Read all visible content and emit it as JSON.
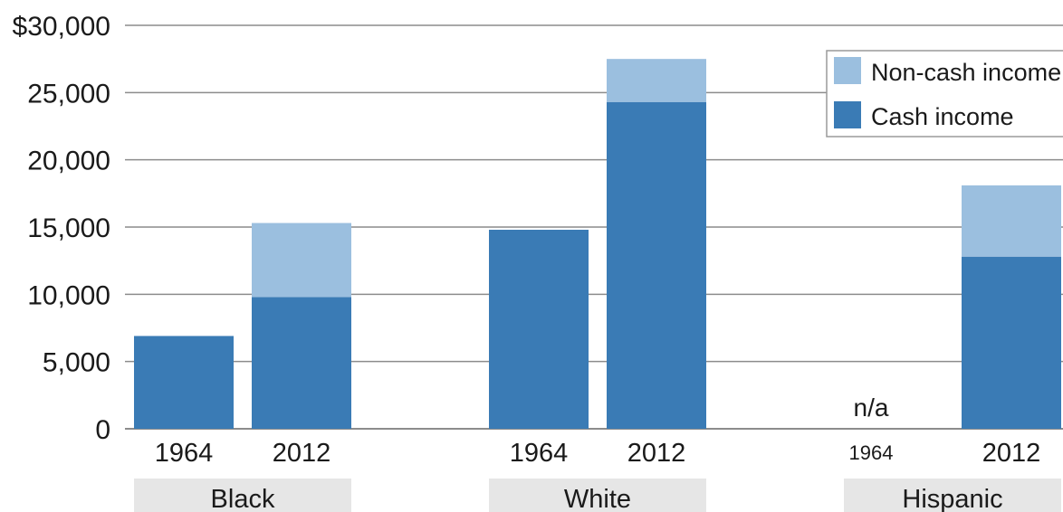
{
  "chart_data": {
    "type": "bar",
    "stacked": true,
    "ylim": [
      0,
      30000
    ],
    "y_ticks": [
      {
        "value": 0,
        "label": "0"
      },
      {
        "value": 5000,
        "label": "5,000"
      },
      {
        "value": 10000,
        "label": "10,000"
      },
      {
        "value": 15000,
        "label": "15,000"
      },
      {
        "value": 20000,
        "label": "20,000"
      },
      {
        "value": 25000,
        "label": "25,000"
      },
      {
        "value": 30000,
        "label": "$30,000"
      }
    ],
    "groups": [
      {
        "name": "Black",
        "categories": [
          "1964",
          "2012"
        ]
      },
      {
        "name": "White",
        "categories": [
          "1964",
          "2012"
        ]
      },
      {
        "name": "Hispanic",
        "categories": [
          "1964",
          "2012"
        ]
      }
    ],
    "series": [
      {
        "name": "Cash income",
        "color": "#3a7bb5",
        "values": [
          6900,
          9800,
          14800,
          24300,
          null,
          12800
        ]
      },
      {
        "name": "Non-cash income",
        "color": "#9bbfdf",
        "values": [
          0,
          5500,
          0,
          3200,
          null,
          5300
        ]
      }
    ],
    "annotations": [
      {
        "group": "Hispanic",
        "category": "1964",
        "text": "n/a"
      }
    ],
    "legend": {
      "placement": "top-right",
      "order": [
        "Non-cash income",
        "Cash income"
      ]
    },
    "grid": true,
    "colors": {
      "cash": "#3a7bb5",
      "noncash": "#9bbfdf",
      "gridline": "#8c8c8c",
      "group_band": "#e6e6e6"
    }
  }
}
